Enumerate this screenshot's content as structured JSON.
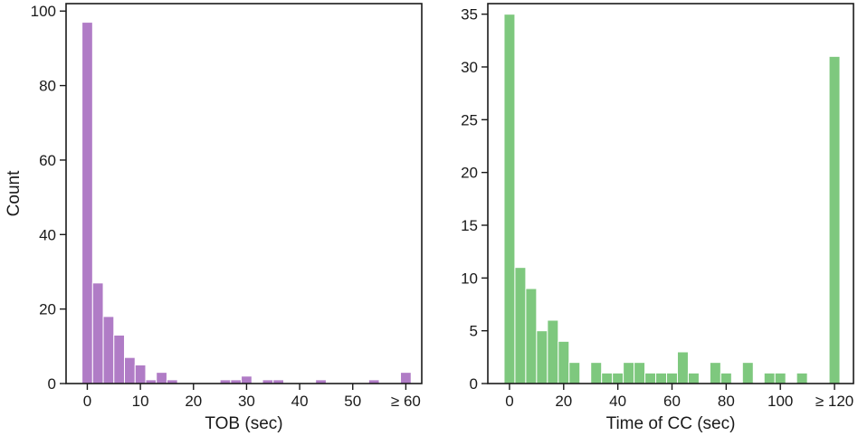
{
  "colors": {
    "tob_bar": "#b07cc6",
    "cc_bar": "#7ec87e",
    "axis": "#1a1a1a"
  },
  "chart_data": [
    {
      "type": "bar",
      "histogram": true,
      "xlabel": "TOB (sec)",
      "ylabel": "Count",
      "xlim": [
        -4,
        63
      ],
      "ylim": [
        0,
        102
      ],
      "xticks": [
        {
          "value": 0,
          "label": "0"
        },
        {
          "value": 10,
          "label": "10"
        },
        {
          "value": 20,
          "label": "20"
        },
        {
          "value": 30,
          "label": "30"
        },
        {
          "value": 40,
          "label": "40"
        },
        {
          "value": 50,
          "label": "50"
        },
        {
          "value": 60,
          "label": "≥ 60"
        }
      ],
      "yticks": [
        0,
        20,
        40,
        60,
        80,
        100
      ],
      "bin_width": 2,
      "bin_starts": [
        -1,
        1,
        3,
        5,
        7,
        9,
        11,
        13,
        15,
        17,
        19,
        21,
        23,
        25,
        27,
        29,
        31,
        33,
        35,
        37,
        39,
        41,
        43,
        45,
        47,
        49,
        51,
        53,
        55,
        57,
        59
      ],
      "counts": [
        97,
        27,
        18,
        13,
        7,
        5,
        1,
        3,
        1,
        0,
        0,
        0,
        0,
        1,
        1,
        2,
        0,
        1,
        1,
        0,
        0,
        0,
        1,
        0,
        0,
        0,
        0,
        1,
        0,
        0,
        3
      ],
      "color": "#b07cc6"
    },
    {
      "type": "bar",
      "histogram": true,
      "xlabel": "Time of CC (sec)",
      "ylabel": "",
      "xlim": [
        -8,
        127
      ],
      "ylim": [
        0,
        36
      ],
      "xticks": [
        {
          "value": 0,
          "label": "0"
        },
        {
          "value": 20,
          "label": "20"
        },
        {
          "value": 40,
          "label": "40"
        },
        {
          "value": 60,
          "label": "60"
        },
        {
          "value": 80,
          "label": "80"
        },
        {
          "value": 100,
          "label": "100"
        },
        {
          "value": 120,
          "label": "≥ 120"
        }
      ],
      "yticks": [
        0,
        5,
        10,
        15,
        20,
        25,
        30,
        35
      ],
      "bin_width": 4,
      "bin_starts": [
        -2,
        2,
        6,
        10,
        14,
        18,
        22,
        26,
        30,
        34,
        38,
        42,
        46,
        50,
        54,
        58,
        62,
        66,
        70,
        74,
        78,
        82,
        86,
        90,
        94,
        98,
        102,
        106,
        110,
        114,
        118
      ],
      "counts": [
        35,
        11,
        9,
        5,
        6,
        4,
        2,
        0,
        2,
        1,
        1,
        2,
        2,
        1,
        1,
        1,
        3,
        1,
        0,
        2,
        1,
        0,
        2,
        0,
        1,
        1,
        0,
        1,
        0,
        0,
        31
      ],
      "color": "#7ec87e"
    }
  ]
}
